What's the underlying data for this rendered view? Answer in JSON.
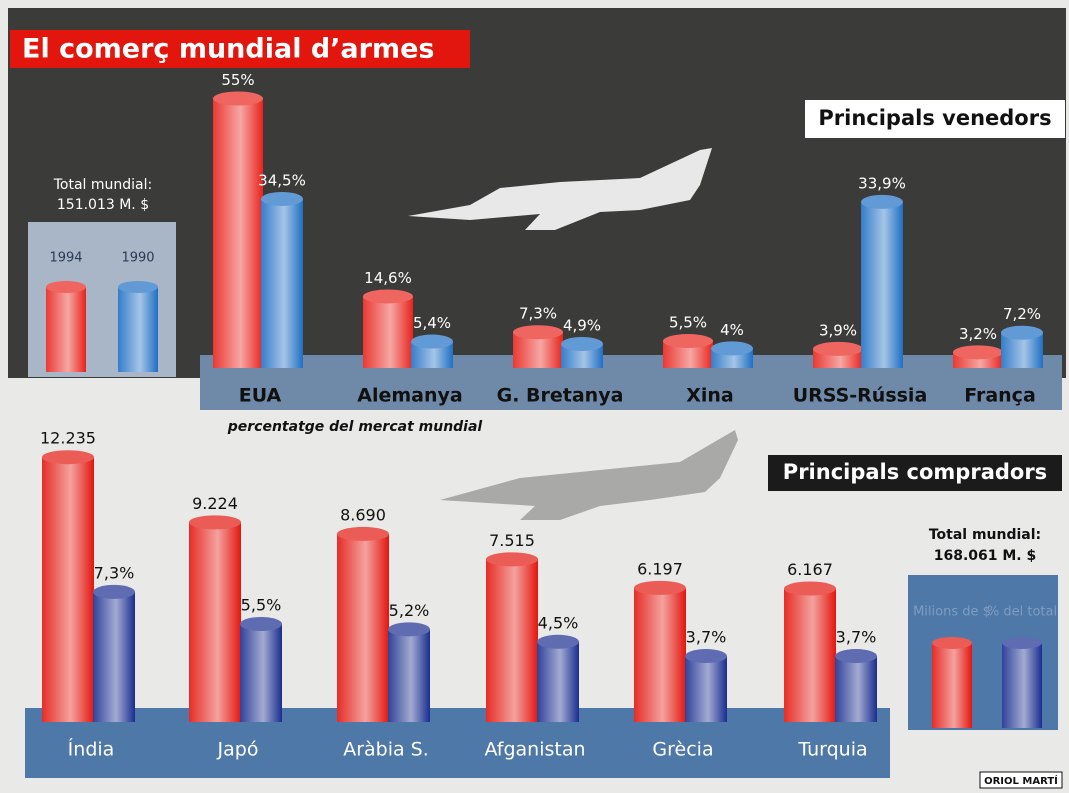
{
  "title": "El comerç mundial d’armes",
  "credit": "ORIOL MARTÍ",
  "chart_data": [
    {
      "type": "bar",
      "title": "Principals venedors",
      "total_label": "Total mundial:",
      "total_value": "151.013 M. $",
      "x_label": "percentatge del mercat mundial",
      "categories": [
        "EUA",
        "Alemanya",
        "G. Bretanya",
        "Xina",
        "URSS-Rússia",
        "França"
      ],
      "series": [
        {
          "name": "1994",
          "color": "#e8231c",
          "values": [
            55,
            14.6,
            7.3,
            5.5,
            3.9,
            3.2
          ],
          "value_labels": [
            "55%",
            "14,6%",
            "7,3%",
            "5,5%",
            "3,9%",
            "3,2%"
          ]
        },
        {
          "name": "1990",
          "color": "#1f6fc4",
          "values": [
            34.5,
            5.4,
            4.9,
            4,
            33.9,
            7.2
          ],
          "value_labels": [
            "34,5%",
            "5,4%",
            "4,9%",
            "4%",
            "33,9%",
            "7,2%"
          ]
        }
      ],
      "ylim": [
        0,
        60
      ]
    },
    {
      "type": "bar",
      "title": "Principals compradors",
      "total_label": "Total mundial:",
      "total_value": "168.061 M. $",
      "categories": [
        "Índia",
        "Japó",
        "Aràbia S.",
        "Afganistan",
        "Grècia",
        "Turquia"
      ],
      "series": [
        {
          "name": "Milions de $",
          "color": "#e3160e",
          "values": [
            12235,
            9224,
            8690,
            7515,
            6197,
            6167
          ],
          "value_labels": [
            "12.235",
            "9.224",
            "8.690",
            "7.515",
            "6.197",
            "6.167"
          ]
        },
        {
          "name": "% del total",
          "color": "#1a2d8f",
          "axis": "y2",
          "values": [
            7.3,
            5.5,
            5.2,
            4.5,
            3.7,
            3.7
          ],
          "value_labels": [
            "7,3%",
            "5,5%",
            "5,2%",
            "4,5%",
            "3,7%",
            "3,7%"
          ]
        }
      ],
      "ylim": [
        0,
        14000
      ],
      "y2lim": [
        0,
        17
      ]
    }
  ]
}
